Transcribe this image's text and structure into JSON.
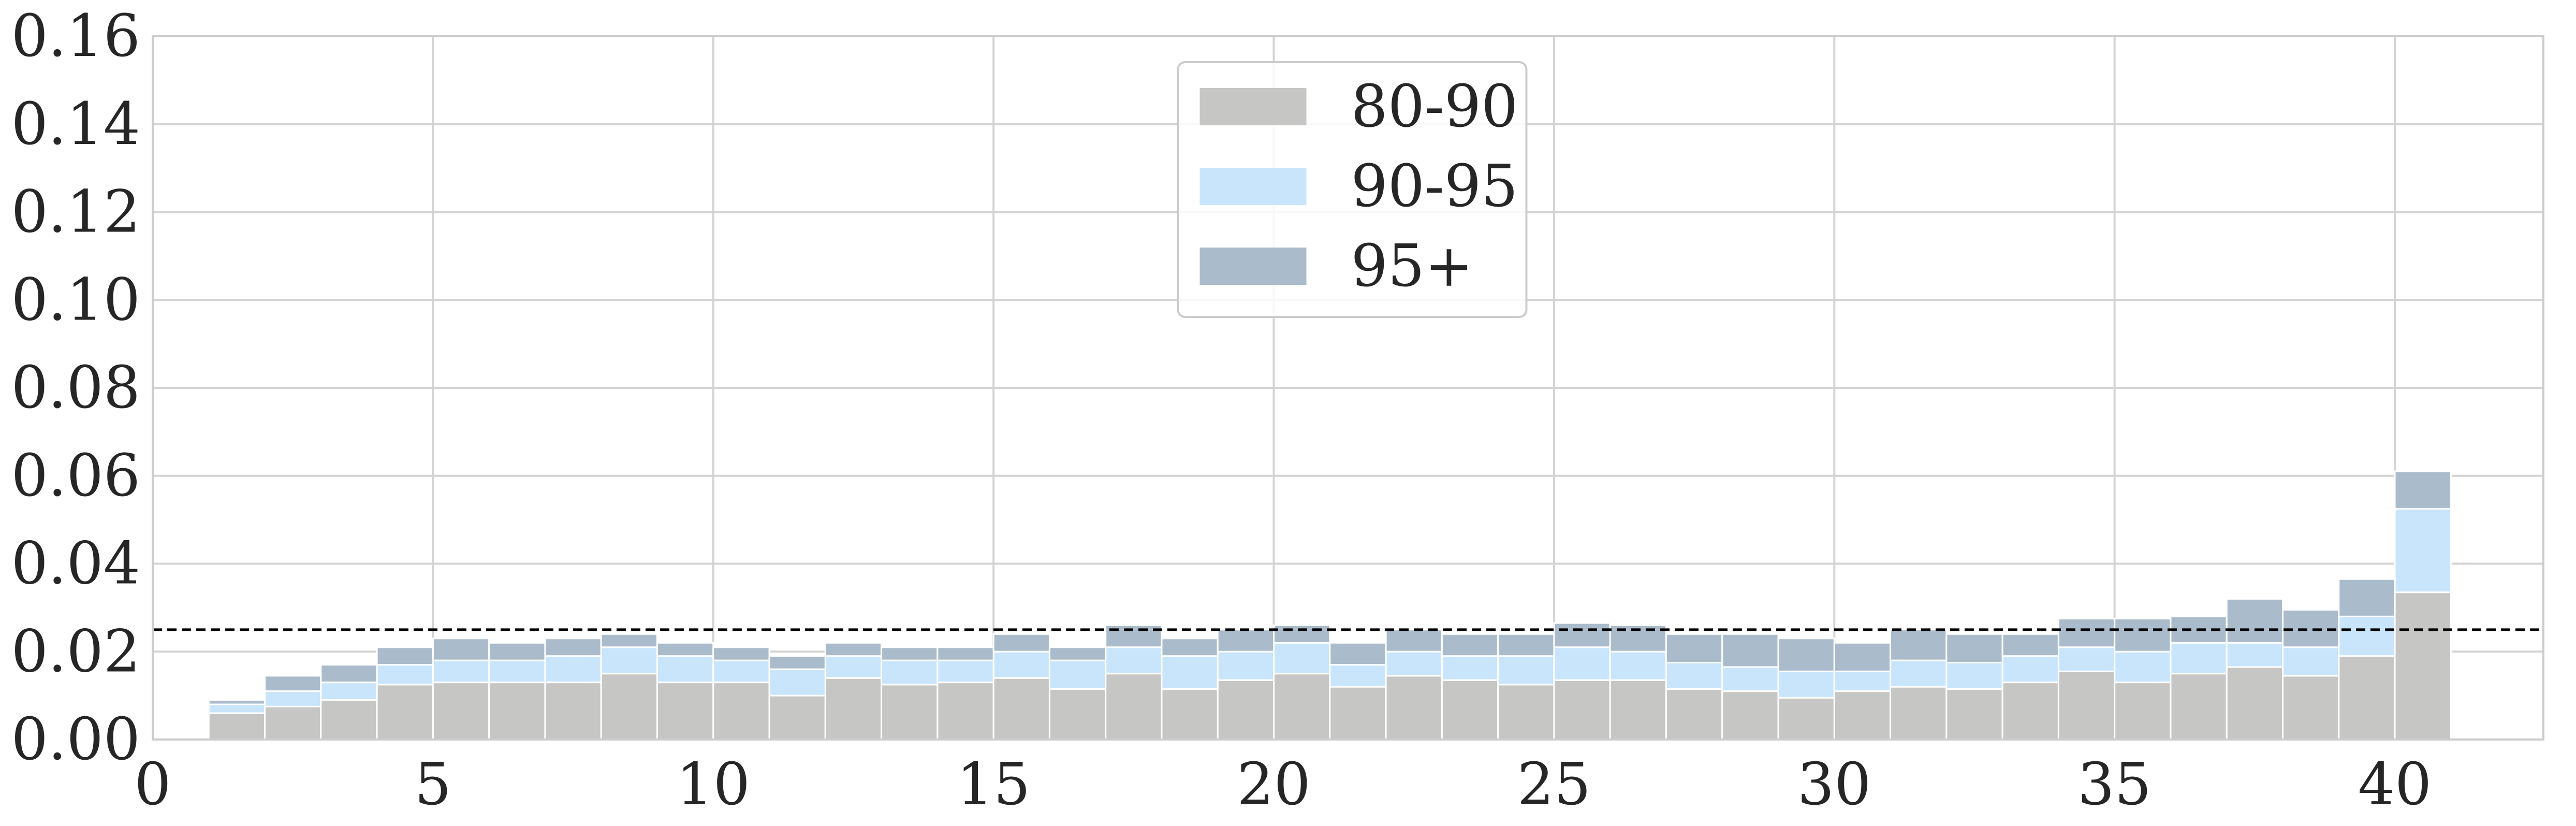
{
  "chart_data": {
    "type": "stacked_histogram",
    "bins": [
      1,
      2,
      3,
      4,
      5,
      6,
      7,
      8,
      9,
      10,
      11,
      12,
      13,
      14,
      15,
      16,
      17,
      18,
      19,
      20,
      21,
      22,
      23,
      24,
      25,
      26,
      27,
      28,
      29,
      30,
      31,
      32,
      33,
      34,
      35,
      36,
      37,
      38,
      39,
      40,
      41
    ],
    "series": [
      {
        "name": "80-90",
        "color": "#c6c6c5",
        "values": [
          0.006,
          0.0075,
          0.009,
          0.0125,
          0.013,
          0.013,
          0.013,
          0.015,
          0.013,
          0.013,
          0.01,
          0.014,
          0.0125,
          0.013,
          0.014,
          0.0115,
          0.015,
          0.0115,
          0.0135,
          0.015,
          0.012,
          0.0145,
          0.0135,
          0.0125,
          0.0135,
          0.0135,
          0.0115,
          0.011,
          0.0095,
          0.011,
          0.012,
          0.0115,
          0.013,
          0.0155,
          0.013,
          0.015,
          0.0165,
          0.0145,
          0.019,
          0.0335
        ]
      },
      {
        "name": "90-95",
        "color": "#c8e5fb",
        "values": [
          0.002,
          0.0035,
          0.004,
          0.0045,
          0.005,
          0.005,
          0.006,
          0.006,
          0.006,
          0.005,
          0.006,
          0.005,
          0.0055,
          0.005,
          0.006,
          0.0065,
          0.006,
          0.0075,
          0.0065,
          0.007,
          0.005,
          0.0055,
          0.0055,
          0.0065,
          0.0075,
          0.0065,
          0.006,
          0.0055,
          0.006,
          0.0045,
          0.006,
          0.006,
          0.006,
          0.0055,
          0.007,
          0.007,
          0.0055,
          0.0065,
          0.009,
          0.019
        ]
      },
      {
        "name": "95+",
        "color": "#aabccb",
        "values": [
          0.001,
          0.0035,
          0.004,
          0.004,
          0.005,
          0.004,
          0.004,
          0.003,
          0.003,
          0.003,
          0.003,
          0.003,
          0.003,
          0.003,
          0.004,
          0.003,
          0.005,
          0.004,
          0.005,
          0.004,
          0.005,
          0.005,
          0.005,
          0.005,
          0.0055,
          0.006,
          0.0065,
          0.0075,
          0.0075,
          0.0065,
          0.007,
          0.0065,
          0.005,
          0.0065,
          0.0075,
          0.006,
          0.01,
          0.0085,
          0.0085,
          0.0085
        ]
      }
    ],
    "reference_line": 0.025,
    "xlim": [
      0,
      42.65
    ],
    "ylim": [
      0,
      0.16
    ],
    "xticks": [
      0,
      5,
      10,
      15,
      20,
      25,
      30,
      35,
      40
    ],
    "yticks": [
      {
        "value": 0,
        "label": "0.00"
      },
      {
        "value": 0.02,
        "label": "0.02"
      },
      {
        "value": 0.04,
        "label": "0.04"
      },
      {
        "value": 0.06,
        "label": "0.06"
      },
      {
        "value": 0.08,
        "label": "0.08"
      },
      {
        "value": 0.1,
        "label": "0.10"
      },
      {
        "value": 0.12,
        "label": "0.12"
      },
      {
        "value": 0.14,
        "label": "0.14"
      },
      {
        "value": 0.16,
        "label": "0.16"
      }
    ],
    "grid": true,
    "legend": "upper center"
  }
}
